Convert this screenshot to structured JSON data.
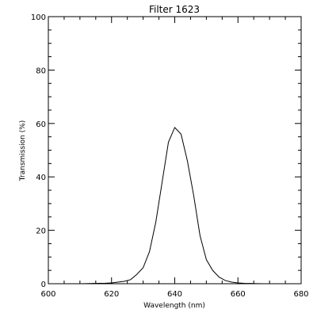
{
  "chart_data": {
    "type": "line",
    "title": "Filter 1623",
    "xlabel": "Wavelength (nm)",
    "ylabel": "Transmission (%)",
    "xlim": [
      600,
      680
    ],
    "ylim": [
      0,
      100
    ],
    "grid": false,
    "x_ticks": [
      "600",
      "620",
      "640",
      "660",
      "680"
    ],
    "y_ticks": [
      "0",
      "20",
      "40",
      "60",
      "80",
      "100"
    ],
    "series": [
      {
        "color": "#000000",
        "x": [
          610,
          612,
          614,
          616,
          618,
          620,
          622,
          624,
          626,
          628,
          630,
          632,
          634,
          636,
          638,
          640,
          642,
          644,
          646,
          648,
          650,
          652,
          654,
          656,
          658,
          660,
          662,
          664,
          666,
          668
        ],
        "y": [
          0.0,
          0.05,
          0.1,
          0.15,
          0.2,
          0.3,
          0.6,
          0.9,
          1.5,
          3.5,
          6.0,
          12.0,
          23.0,
          38.0,
          53.0,
          58.5,
          56.0,
          46.0,
          33.0,
          18.0,
          9.0,
          5.0,
          2.5,
          1.2,
          0.6,
          0.3,
          0.15,
          0.1,
          0.05,
          0.0
        ]
      }
    ]
  }
}
